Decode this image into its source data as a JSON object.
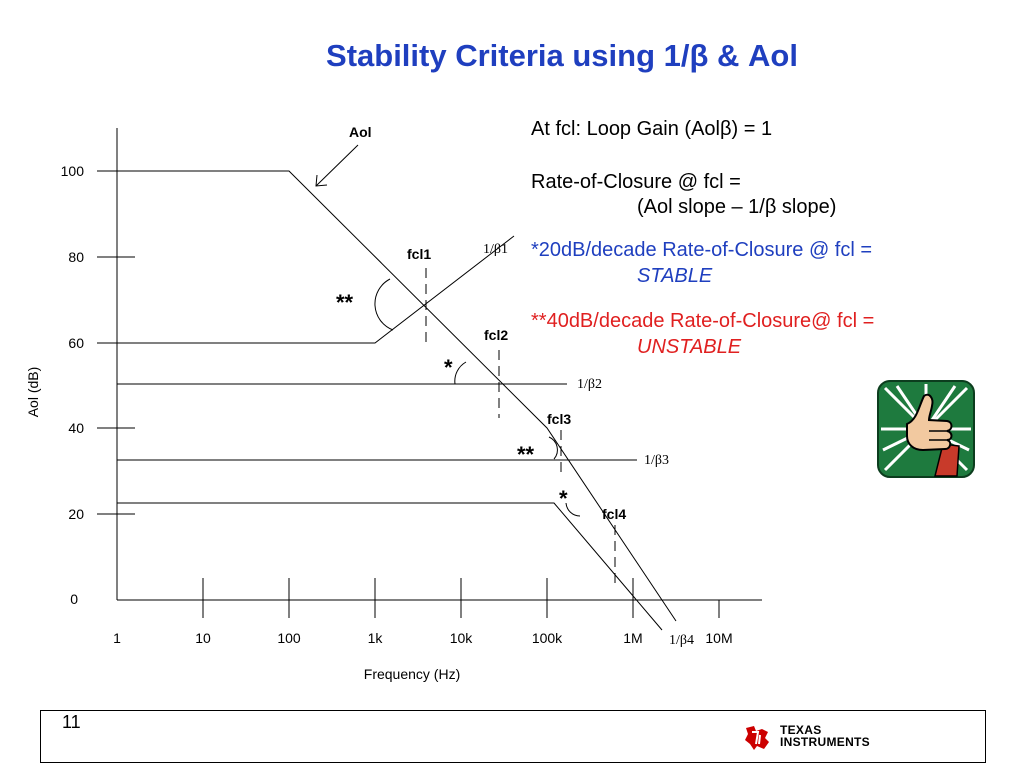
{
  "title": "Stability Criteria using 1/β & Aol",
  "notes": {
    "line1": "At fcl: Loop Gain (Aolβ) = 1",
    "line2a": "Rate-of-Closure @ fcl =",
    "line2b": "(Aol slope – 1/β slope)",
    "line3a": "*20dB/decade Rate-of-Closure @ fcl =",
    "line3b": "STABLE",
    "line4a": "**40dB/decade Rate-of-Closure@ fcl =",
    "line4b": "UNSTABLE"
  },
  "axis": {
    "y_label": "Aol (dB)",
    "x_label": "Frequency (Hz)",
    "y_ticks": [
      "100",
      "80",
      "60",
      "40",
      "20",
      "0"
    ],
    "x_ticks": [
      "1",
      "10",
      "100",
      "1k",
      "10k",
      "100k",
      "1M",
      "10M"
    ]
  },
  "labels": {
    "aol": "Aol",
    "fcl1": "fcl1",
    "fcl2": "fcl2",
    "fcl3": "fcl3",
    "fcl4": "fcl4",
    "b1": "1/β1",
    "b2": "1/β2",
    "b3": "1/β3",
    "b4": "1/β4",
    "mark_double_1": "**",
    "mark_single_1": "*",
    "mark_double_2": "**",
    "mark_single_2": "*"
  },
  "footer": {
    "page": "11",
    "brand_line1": "TEXAS",
    "brand_line2": "INSTRUMENTS"
  },
  "colors": {
    "title": "#1f3fbf",
    "stable": "#1f3fbf",
    "unstable": "#e02020",
    "thumb_bg": "#1e7a3e"
  }
}
